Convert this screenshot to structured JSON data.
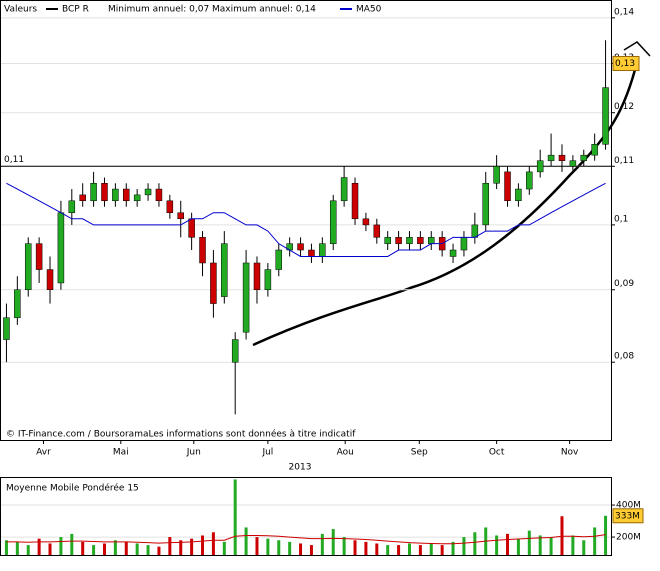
{
  "chart_data": [
    {
      "type": "candlestick",
      "title": "Valeurs",
      "subtitle": "Minimum annuel: 0,07 Maximum annuel: 0,14",
      "xlabel": "2013",
      "footer": "© IT-Finance.com / BoursoramaLes informations sont données à titre indicatif",
      "log_scale": true,
      "grid": true,
      "categories": [
        null,
        null,
        null,
        null,
        null,
        null,
        null,
        null,
        null,
        null,
        null,
        null,
        null,
        null,
        null,
        null,
        null,
        null,
        null,
        null,
        null,
        null,
        null,
        null,
        null,
        null,
        null,
        null,
        null,
        null,
        null,
        null,
        null,
        null,
        null,
        null,
        null,
        null,
        null,
        null,
        null,
        null,
        null,
        null,
        null,
        null,
        null,
        null,
        null,
        null,
        null,
        null,
        null,
        null,
        null,
        null
      ],
      "xlim": [
        0,
        56
      ],
      "xticks": [
        {
          "value": 3.9,
          "label": "Avr"
        },
        {
          "value": 11,
          "label": "Mai"
        },
        {
          "value": 17.7,
          "label": "Jun"
        },
        {
          "value": 24.5,
          "label": "Jul"
        },
        {
          "value": 31.6,
          "label": "Aou"
        },
        {
          "value": 38.4,
          "label": "Sep"
        },
        {
          "value": 45.5,
          "label": "Oct"
        },
        {
          "value": 52.2,
          "label": "Nov"
        }
      ],
      "ylim": [
        0.0705,
        0.1418
      ],
      "yticks": [
        {
          "value": 0.08,
          "label": "0,08"
        },
        {
          "value": 0.09,
          "label": "0,09"
        },
        {
          "value": 0.1,
          "label": "0,1"
        },
        {
          "value": 0.11,
          "label": "0,11"
        },
        {
          "value": 0.12,
          "label": "0,12"
        },
        {
          "value": 0.13,
          "label": "0,13"
        },
        {
          "value": 0.14,
          "label": "0,14"
        }
      ],
      "ref_line": {
        "value": 0.11,
        "label": "0,11"
      },
      "last": {
        "value": 0.13,
        "label": "0,13"
      },
      "series": [
        {
          "name": "BCP R",
          "color": "#000000",
          "up_color": "#22aa22",
          "down_color": "#cc0000",
          "open": [
            0.083,
            0.086,
            0.09,
            0.097,
            0.093,
            0.091,
            0.102,
            0.105,
            0.104,
            0.107,
            0.104,
            0.106,
            0.104,
            0.105,
            0.106,
            0.104,
            0.102,
            0.101,
            0.098,
            0.094,
            0.089,
            0.08,
            0.084,
            0.094,
            0.09,
            0.093,
            0.096,
            0.097,
            0.096,
            0.095,
            0.097,
            0.104,
            0.107,
            0.101,
            0.1,
            0.097,
            0.098,
            0.097,
            0.098,
            0.097,
            0.098,
            0.095,
            0.096,
            0.098,
            0.1,
            0.107,
            0.109,
            0.104,
            0.106,
            0.109,
            0.111,
            0.112,
            0.11,
            0.111,
            0.112,
            0.114
          ],
          "high": [
            0.088,
            0.092,
            0.098,
            0.098,
            0.095,
            0.104,
            0.106,
            0.107,
            0.109,
            0.108,
            0.107,
            0.107,
            0.106,
            0.107,
            0.107,
            0.105,
            0.104,
            0.102,
            0.099,
            0.096,
            0.099,
            0.084,
            0.096,
            0.095,
            0.094,
            0.097,
            0.098,
            0.098,
            0.097,
            0.098,
            0.105,
            0.11,
            0.108,
            0.102,
            0.101,
            0.099,
            0.099,
            0.099,
            0.099,
            0.099,
            0.099,
            0.097,
            0.099,
            0.102,
            0.109,
            0.112,
            0.11,
            0.107,
            0.11,
            0.113,
            0.116,
            0.114,
            0.112,
            0.113,
            0.116,
            0.135
          ],
          "low": [
            0.08,
            0.085,
            0.089,
            0.091,
            0.088,
            0.09,
            0.1,
            0.103,
            0.103,
            0.103,
            0.103,
            0.103,
            0.103,
            0.104,
            0.103,
            0.101,
            0.098,
            0.096,
            0.092,
            0.086,
            0.088,
            0.0735,
            0.083,
            0.088,
            0.089,
            0.092,
            0.095,
            0.095,
            0.094,
            0.094,
            0.096,
            0.103,
            0.1,
            0.099,
            0.097,
            0.096,
            0.096,
            0.096,
            0.096,
            0.096,
            0.095,
            0.094,
            0.095,
            0.097,
            0.099,
            0.106,
            0.103,
            0.103,
            0.105,
            0.108,
            0.11,
            0.109,
            0.109,
            0.11,
            0.111,
            0.113
          ],
          "close": [
            0.086,
            0.09,
            0.097,
            0.093,
            0.09,
            0.102,
            0.104,
            0.104,
            0.107,
            0.104,
            0.106,
            0.104,
            0.105,
            0.106,
            0.104,
            0.102,
            0.101,
            0.098,
            0.094,
            0.088,
            0.097,
            0.083,
            0.094,
            0.09,
            0.093,
            0.096,
            0.097,
            0.096,
            0.095,
            0.097,
            0.104,
            0.108,
            0.101,
            0.1,
            0.098,
            0.098,
            0.097,
            0.098,
            0.097,
            0.098,
            0.096,
            0.096,
            0.098,
            0.1,
            0.107,
            0.11,
            0.104,
            0.106,
            0.109,
            0.111,
            0.112,
            0.111,
            0.111,
            0.112,
            0.114,
            0.125
          ]
        },
        {
          "name": "MA50",
          "color": "#0000cc",
          "values": [
            0.107,
            0.106,
            0.105,
            0.104,
            0.103,
            0.102,
            0.101,
            0.101,
            0.1,
            0.1,
            0.1,
            0.1,
            0.1,
            0.1,
            0.1,
            0.1,
            0.1,
            0.101,
            0.101,
            0.102,
            0.102,
            0.101,
            0.1,
            0.1,
            0.099,
            0.097,
            0.096,
            0.095,
            0.095,
            0.095,
            0.095,
            0.095,
            0.095,
            0.095,
            0.095,
            0.095,
            0.096,
            0.096,
            0.096,
            0.097,
            0.097,
            0.098,
            0.098,
            0.098,
            0.099,
            0.099,
            0.099,
            0.1,
            0.1,
            0.101,
            0.102,
            0.103,
            0.104,
            0.105,
            0.106,
            0.107
          ]
        }
      ]
    },
    {
      "type": "volume",
      "title": "Moyenne Mobile Pondérée 15",
      "ylim": [
        88,
        569
      ],
      "yticks": [
        {
          "value": 200,
          "label": "200M"
        },
        {
          "value": 400,
          "label": "400M"
        }
      ],
      "last": {
        "value": 333,
        "label": "333M"
      },
      "values": [
        180,
        170,
        150,
        190,
        160,
        200,
        220,
        170,
        150,
        160,
        180,
        170,
        160,
        150,
        140,
        200,
        180,
        190,
        210,
        230,
        170,
        560,
        260,
        200,
        190,
        180,
        170,
        160,
        150,
        220,
        250,
        200,
        180,
        170,
        160,
        150,
        150,
        160,
        150,
        160,
        150,
        170,
        200,
        230,
        260,
        210,
        220,
        190,
        240,
        210,
        200,
        330,
        210,
        180,
        260,
        333
      ],
      "series": [
        {
          "color": "#cc0000",
          "values": [
            170,
            170,
            168,
            170,
            170,
            172,
            175,
            175,
            172,
            170,
            170,
            170,
            168,
            165,
            162,
            165,
            167,
            170,
            175,
            180,
            180,
            205,
            210,
            210,
            208,
            205,
            200,
            195,
            190,
            190,
            192,
            190,
            188,
            185,
            180,
            175,
            170,
            165,
            162,
            160,
            158,
            158,
            162,
            168,
            175,
            180,
            185,
            188,
            192,
            195,
            197,
            205,
            205,
            202,
            205,
            215
          ]
        }
      ]
    }
  ]
}
